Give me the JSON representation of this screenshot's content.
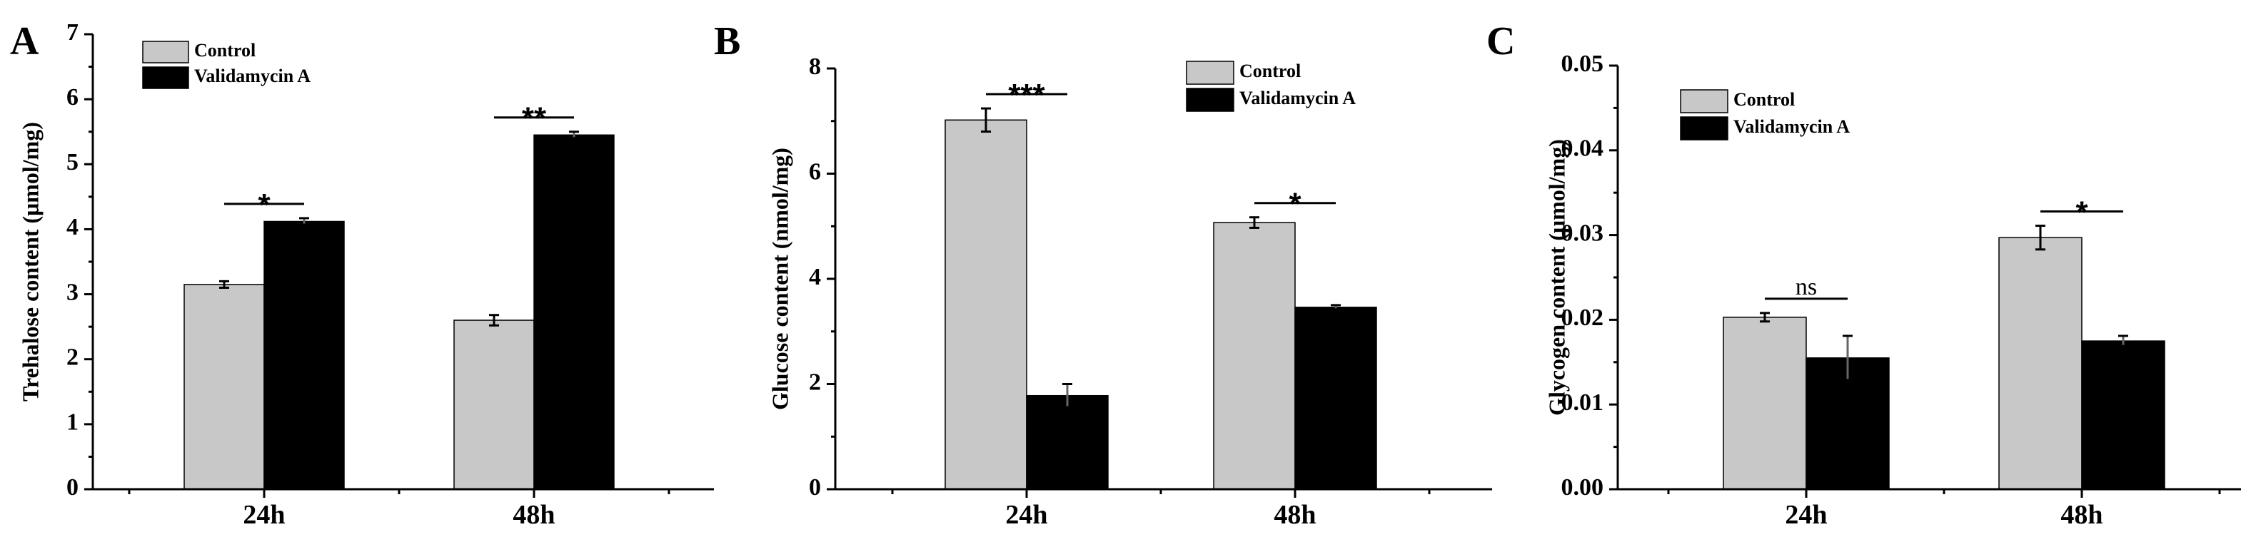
{
  "colors": {
    "control": "#c8c8c8",
    "treatment": "#000000",
    "axis": "#000000"
  },
  "chart_data": [
    {
      "type": "bar",
      "panel": "A",
      "categories": [
        "24h",
        "48h"
      ],
      "ylabel": "Trehalose content (μmol/mg)",
      "ylim": [
        0,
        7
      ],
      "yticks": [
        "0",
        "1",
        "2",
        "3",
        "4",
        "5",
        "6",
        "7"
      ],
      "legend": [
        "Control",
        "Validamycin A"
      ],
      "series": [
        {
          "name": "Control",
          "values": [
            3.15,
            2.6
          ],
          "errors": [
            0.05,
            0.08
          ]
        },
        {
          "name": "Validamycin A",
          "values": [
            4.12,
            5.45
          ],
          "errors": [
            0.05,
            0.05
          ]
        }
      ],
      "significance": [
        "*",
        "**"
      ]
    },
    {
      "type": "bar",
      "panel": "B",
      "categories": [
        "24h",
        "48h"
      ],
      "ylabel": "Glucose content (nmol/mg)",
      "ylim": [
        0,
        8
      ],
      "yticks": [
        "0",
        "2",
        "4",
        "6",
        "8"
      ],
      "legend": [
        "Control",
        "Validamycin A"
      ],
      "series": [
        {
          "name": "Control",
          "values": [
            7.02,
            5.07
          ],
          "errors": [
            0.22,
            0.1
          ]
        },
        {
          "name": "Validamycin A",
          "values": [
            1.78,
            3.46
          ],
          "errors": [
            0.22,
            0.04
          ]
        }
      ],
      "significance": [
        "***",
        "*"
      ]
    },
    {
      "type": "bar",
      "panel": "C",
      "categories": [
        "24h",
        "48h"
      ],
      "ylabel": "Glycogen content (μmol/mg)",
      "ylim": [
        0,
        0.05
      ],
      "yticks": [
        "0.00",
        "0.01",
        "0.02",
        "0.03",
        "0.04",
        "0.05"
      ],
      "legend": [
        "Control",
        "Validamycin A"
      ],
      "series": [
        {
          "name": "Control",
          "values": [
            0.0203,
            0.0297
          ],
          "errors": [
            0.0005,
            0.0014
          ]
        },
        {
          "name": "Validamycin A",
          "values": [
            0.0155,
            0.0175
          ],
          "errors": [
            0.0026,
            0.0006
          ]
        }
      ],
      "significance": [
        "ns",
        "*"
      ]
    }
  ]
}
